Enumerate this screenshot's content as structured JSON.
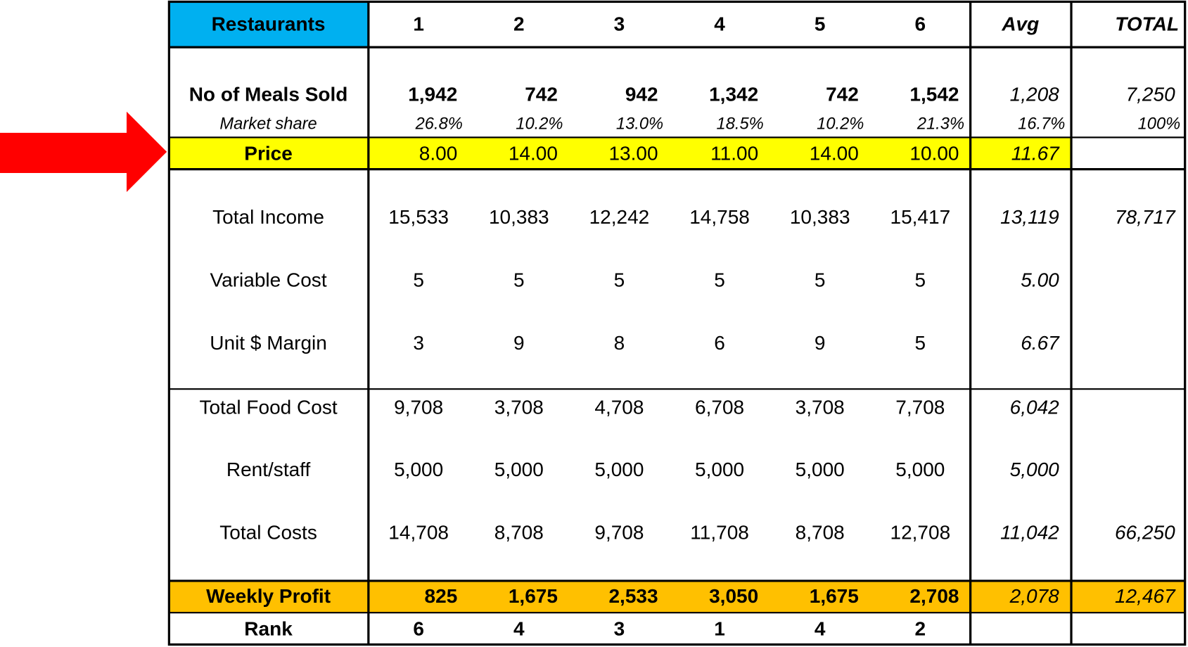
{
  "table": {
    "header": [
      "Restaurants",
      "1",
      "2",
      "3",
      "4",
      "5",
      "6",
      "Avg",
      "TOTAL"
    ],
    "rows": [
      {
        "label": "No of Meals Sold",
        "values": [
          "1,942",
          "742",
          "942",
          "1,342",
          "742",
          "1,542"
        ],
        "avg": "1,208",
        "total": "7,250"
      },
      {
        "label": "Market share",
        "values": [
          "26.8%",
          "10.2%",
          "13.0%",
          "18.5%",
          "10.2%",
          "21.3%"
        ],
        "avg": "16.7%",
        "total": "100%"
      },
      {
        "label": "Price",
        "values": [
          "8.00",
          "14.00",
          "13.00",
          "11.00",
          "14.00",
          "10.00"
        ],
        "avg": "11.67"
      },
      {
        "label": "Total Income",
        "values": [
          "15,533",
          "10,383",
          "12,242",
          "14,758",
          "10,383",
          "15,417"
        ],
        "avg": "13,119",
        "total": "78,717"
      },
      {
        "label": "Variable Cost",
        "values": [
          "5",
          "5",
          "5",
          "5",
          "5",
          "5"
        ],
        "avg": "5.00"
      },
      {
        "label": "Unit $ Margin",
        "values": [
          "3",
          "9",
          "8",
          "6",
          "9",
          "5"
        ],
        "avg": "6.67"
      },
      {
        "label": "Total Food Cost",
        "values": [
          "9,708",
          "3,708",
          "4,708",
          "6,708",
          "3,708",
          "7,708"
        ],
        "avg": "6,042"
      },
      {
        "label": "Rent/staff",
        "values": [
          "5,000",
          "5,000",
          "5,000",
          "5,000",
          "5,000",
          "5,000"
        ],
        "avg": "5,000"
      },
      {
        "label": "Total Costs",
        "values": [
          "14,708",
          "8,708",
          "9,708",
          "11,708",
          "8,708",
          "12,708"
        ],
        "avg": "11,042",
        "total": "66,250"
      },
      {
        "label": "Weekly Profit",
        "values": [
          "825",
          "1,675",
          "2,533",
          "3,050",
          "1,675",
          "2,708"
        ],
        "avg": "2,078",
        "total": "12,467"
      },
      {
        "label": "Rank",
        "values": [
          "6",
          "4",
          "3",
          "1",
          "4",
          "2"
        ]
      }
    ]
  }
}
